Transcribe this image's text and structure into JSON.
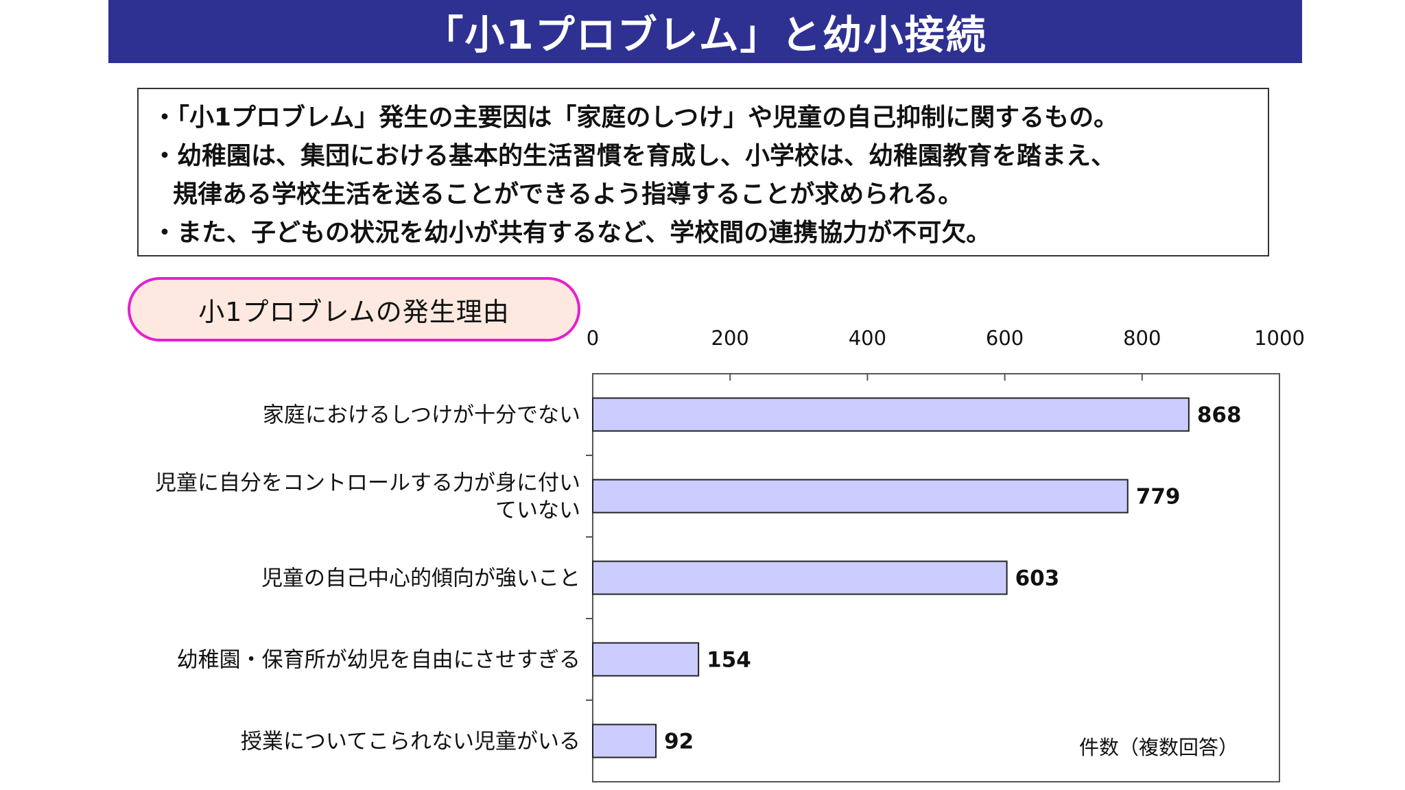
{
  "title": "「小1プロブレム」と幼小接続",
  "summary": {
    "lines": [
      "・「小1プロブレム」発生の主要因は「家庭のしつけ」や児童の自己抑制に関するもの。",
      "・幼稚園は、集団における基本的生活習慣を育成し、小学校は、幼稚園教育を踏まえ、",
      "規律ある学校生活を送ることができるよう指導することが求められる。",
      "・また、子どもの状況を幼小が共有するなど、学校間の連携協力が不可欠。"
    ]
  },
  "section_label": "小1プロブレムの発生理由",
  "colors": {
    "banner": "#2e3192",
    "pill_border": "#e61fcf",
    "pill_fill": "#fde9df",
    "bar_fill": "#ccccff",
    "bar_stroke": "#222222"
  },
  "chart_data": {
    "type": "bar",
    "orientation": "horizontal",
    "categories": [
      [
        "家庭におけるしつけが十分でない"
      ],
      [
        "児童に自分をコントロールする力が身に付い",
        "ていない"
      ],
      [
        "児童の自己中心的傾向が強いこと"
      ],
      [
        "幼稚園・保育所が幼児を自由にさせすぎる"
      ],
      [
        "授業についてこられない児童がいる"
      ]
    ],
    "values": [
      868,
      779,
      603,
      154,
      92
    ],
    "xlim": [
      0,
      1000
    ],
    "xticks": [
      "0",
      "200",
      "400",
      "600",
      "800",
      "1000"
    ],
    "axis_position": "top",
    "unit_label": "件数（複数回答）",
    "data_labels": true,
    "grid": false
  }
}
